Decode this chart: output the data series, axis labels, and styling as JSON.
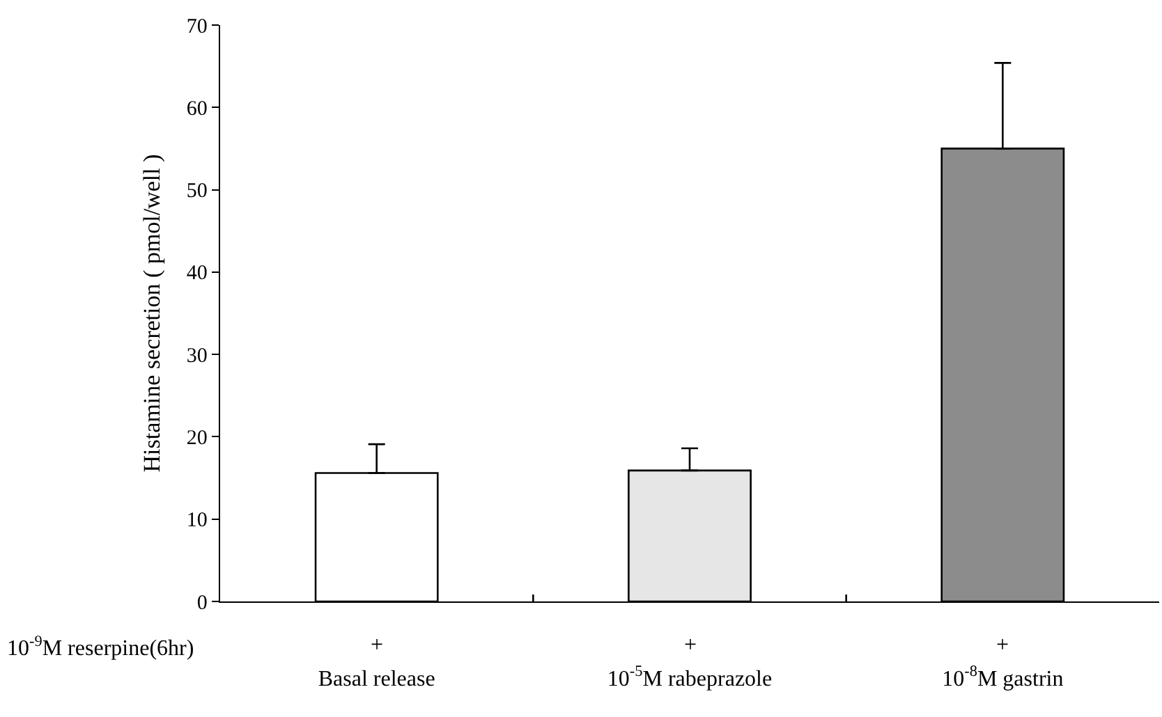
{
  "chart_data": {
    "type": "bar",
    "ylabel": "Histamine secretion ( pmol/well )",
    "categories": [
      "Basal release",
      "10$^{-5}$M rabeprazole",
      "10$^{-8}$M gastrin"
    ],
    "values": [
      15.6,
      15.9,
      55.0
    ],
    "colors": [
      "#ffffff",
      "#e6e6e6",
      "#8c8c8c"
    ],
    "errors": [
      [
        15.6,
        19.1
      ],
      [
        15.9,
        18.6
      ],
      [
        55.0,
        65.4
      ]
    ],
    "ylim": [
      0,
      70
    ],
    "yticks": [
      0,
      10,
      20,
      30,
      40,
      50,
      60,
      70
    ],
    "grid": false,
    "legend": false,
    "annotations": [
      "10$^{-9}$M reserpine(6hr)",
      "+",
      "+",
      "+"
    ]
  }
}
